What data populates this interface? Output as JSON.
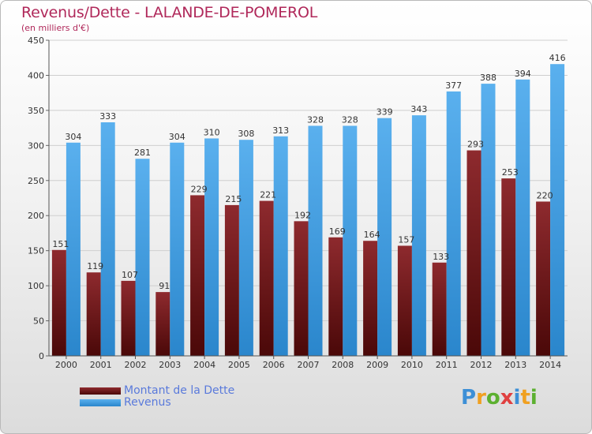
{
  "title": "Revenus/Dette - LALANDE-DE-POMEROL",
  "subtitle": "(en milliers d'€)",
  "colors": {
    "dette": "#7a1a1e",
    "revenus": "#3d9ae0",
    "title": "#b0285a"
  },
  "chart_data": {
    "type": "bar",
    "categories": [
      "2000",
      "2001",
      "2002",
      "2003",
      "2004",
      "2005",
      "2006",
      "2007",
      "2008",
      "2009",
      "2010",
      "2011",
      "2012",
      "2013",
      "2014"
    ],
    "series": [
      {
        "name": "Montant de la Dette",
        "values": [
          151,
          119,
          107,
          91,
          229,
          215,
          221,
          192,
          169,
          164,
          157,
          133,
          293,
          253,
          220
        ]
      },
      {
        "name": "Revenus",
        "values": [
          304,
          333,
          281,
          304,
          310,
          308,
          313,
          328,
          328,
          339,
          343,
          377,
          388,
          394,
          416
        ]
      }
    ],
    "ylim": [
      0,
      450
    ],
    "yticks": [
      0,
      50,
      100,
      150,
      200,
      250,
      300,
      350,
      400,
      450
    ],
    "grid": true,
    "legend": "bottom-left"
  },
  "legend": {
    "dette_label": "Montant de la Dette",
    "revenus_label": "Revenus"
  },
  "logo": {
    "letters": [
      "P",
      "r",
      "o",
      "x",
      "i",
      "t",
      "i"
    ],
    "letter_colors": [
      "#3d8fd6",
      "#f0a020",
      "#5cb030",
      "#e04040",
      "#3d8fd6",
      "#f0a020",
      "#5cb030"
    ]
  }
}
